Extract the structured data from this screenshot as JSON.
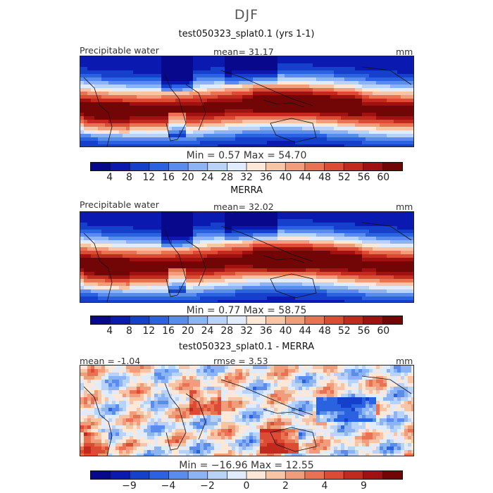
{
  "season": "DJF",
  "panels": [
    {
      "title": "test050323_splat0.1 (yrs 1-1)",
      "left": "Precipitable water",
      "center": "mean=  31.17",
      "units": "mm",
      "minmax": "Min =   0.57  Max =  54.70",
      "scheme": "abs",
      "colorbar": {
        "colors": [
          "#08088c",
          "#0a1ab0",
          "#1440cc",
          "#2a62e0",
          "#5a8cee",
          "#8cb4f4",
          "#b8d2f8",
          "#e0ecfc",
          "#fde8d8",
          "#f8c4a6",
          "#f19c7a",
          "#e87352",
          "#dc4c34",
          "#c32a1e",
          "#a01212",
          "#720606"
        ],
        "labels": [
          "4",
          "8",
          "12",
          "16",
          "20",
          "24",
          "28",
          "32",
          "36",
          "40",
          "44",
          "48",
          "52",
          "56",
          "60"
        ]
      }
    },
    {
      "title": "MERRA",
      "left": "Precipitable water",
      "center": "mean=  32.02",
      "units": "mm",
      "minmax": "Min =   0.77  Max =  58.75",
      "scheme": "abs",
      "colorbar": {
        "colors": [
          "#08088c",
          "#0a1ab0",
          "#1440cc",
          "#2a62e0",
          "#5a8cee",
          "#8cb4f4",
          "#b8d2f8",
          "#e0ecfc",
          "#fde8d8",
          "#f8c4a6",
          "#f19c7a",
          "#e87352",
          "#dc4c34",
          "#c32a1e",
          "#a01212",
          "#720606"
        ],
        "labels": [
          "4",
          "8",
          "12",
          "16",
          "20",
          "24",
          "28",
          "32",
          "36",
          "40",
          "44",
          "48",
          "52",
          "56",
          "60"
        ]
      }
    },
    {
      "title": "test050323_splat0.1 - MERRA",
      "left": "mean =   -1.04",
      "center": "rmse =    3.53",
      "units": "mm",
      "minmax": "Min = −16.96  Max =  12.55",
      "scheme": "diff",
      "colorbar": {
        "colors": [
          "#08088c",
          "#0a1ab0",
          "#1440cc",
          "#2a62e0",
          "#5a8cee",
          "#8cb4f4",
          "#b8d2f8",
          "#e0ecfc",
          "#fde8d8",
          "#f8c4a6",
          "#f19c7a",
          "#e87352",
          "#dc4c34",
          "#c32a1e",
          "#a01212",
          "#720606"
        ],
        "labels": [
          "",
          "−9",
          "",
          "−4",
          "",
          "−2",
          "",
          "0",
          "",
          "2",
          "",
          "4",
          "",
          "9",
          ""
        ]
      }
    }
  ]
}
